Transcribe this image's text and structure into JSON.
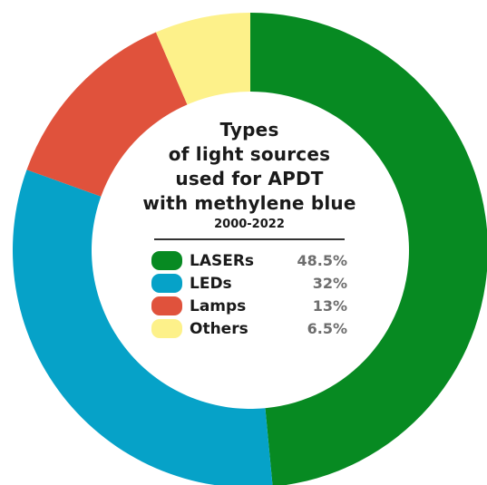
{
  "chart_data": {
    "type": "pie",
    "title": [
      "Types",
      "of light sources",
      "used for APDT",
      "with methylene blue"
    ],
    "subtitle": "2000-2022",
    "slices": [
      {
        "label": "LASERs",
        "value": 48.5,
        "value_label": "48.5%",
        "color": "#078a22"
      },
      {
        "label": "LEDs",
        "value": 32,
        "value_label": "32%",
        "color": "#06a2c8"
      },
      {
        "label": "Lamps",
        "value": 13,
        "value_label": "13%",
        "color": "#e0523c"
      },
      {
        "label": "Others",
        "value": 6.5,
        "value_label": "6.5%",
        "color": "#fdf18a"
      }
    ],
    "legend_position": "center"
  }
}
